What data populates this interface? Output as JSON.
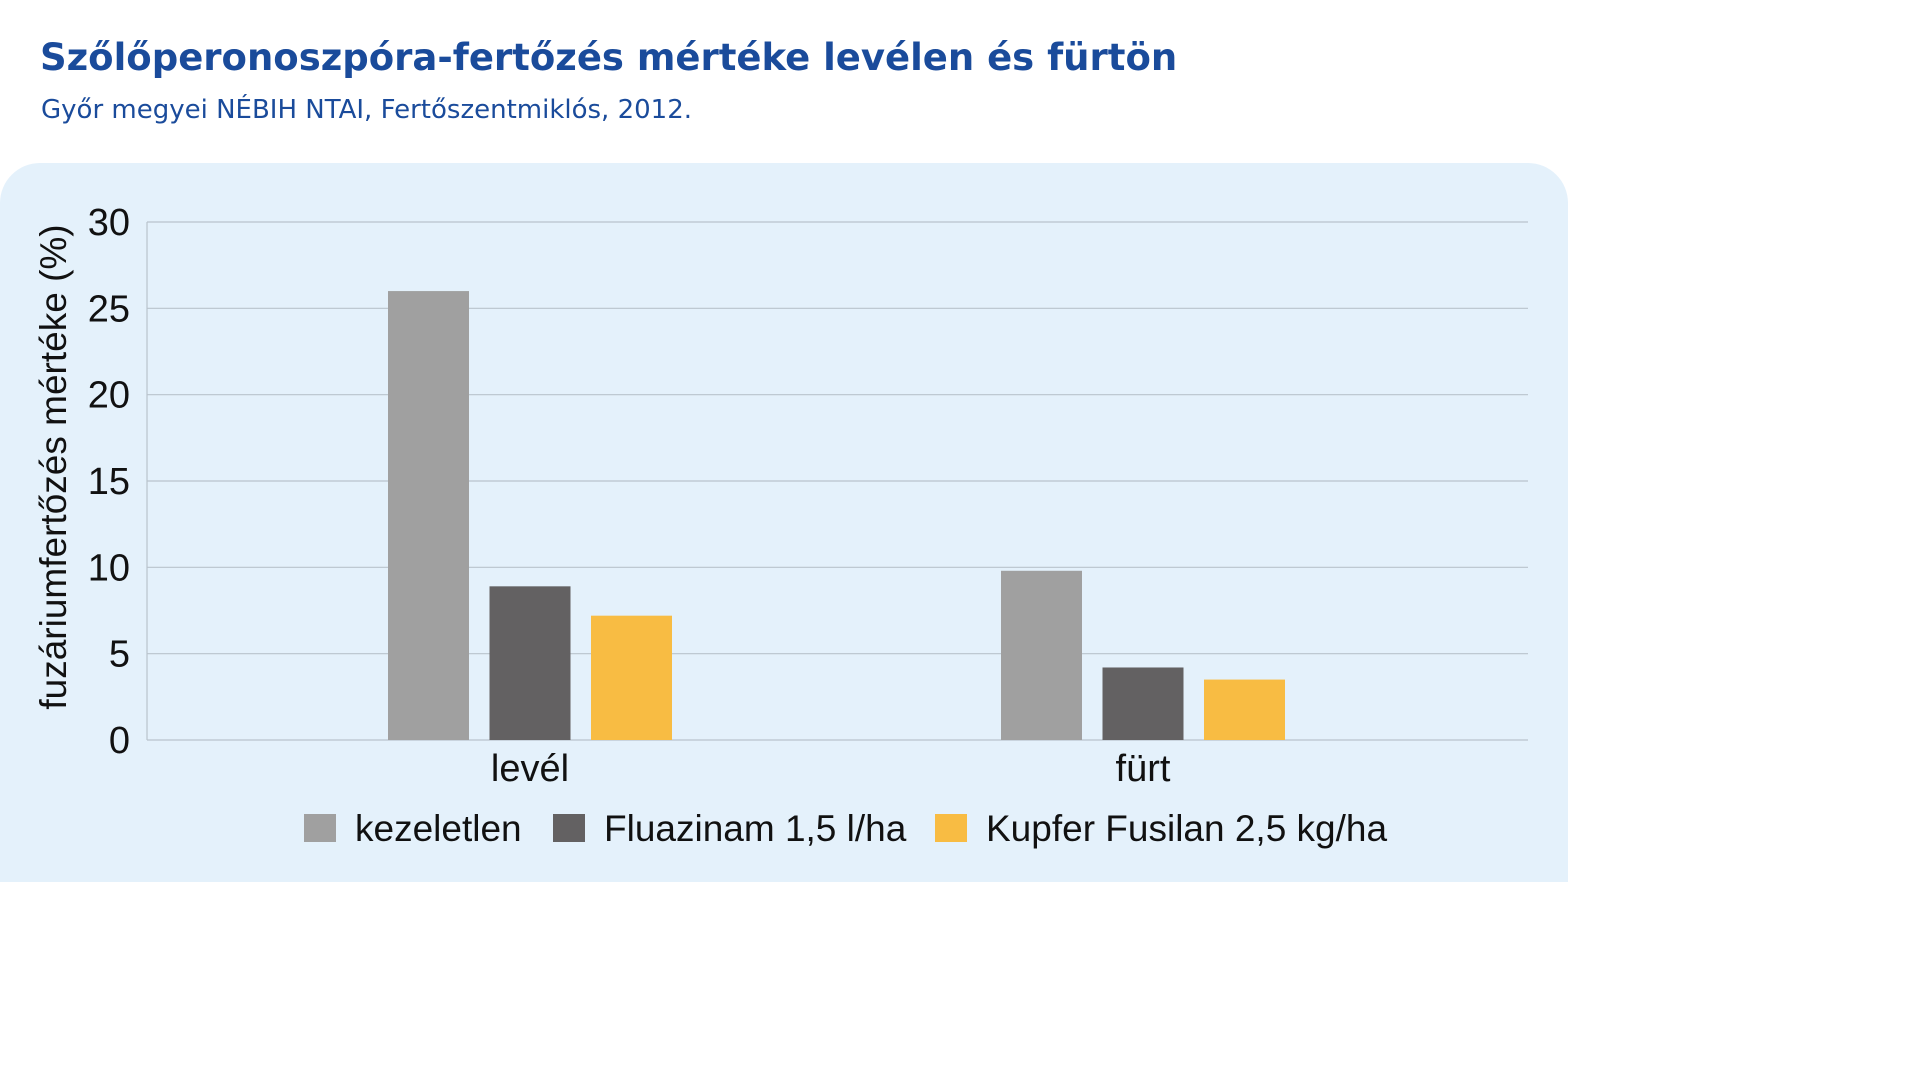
{
  "header": {
    "title": "Szőlőperonoszpóra-fertőzés mértéke levélen és fürtön",
    "subtitle": "Győr megyei NÉBIH NTAI, Fertőszentmiklós, 2012."
  },
  "colors": {
    "panel_background": "#e4f1fb",
    "title": "#1a4b9b",
    "gridline": "#b9c3cc"
  },
  "chart_data": {
    "type": "bar",
    "title": "",
    "xlabel": "",
    "ylabel": "fuzáriumfertőzés mértéke (%)",
    "ylim": [
      0,
      30
    ],
    "yticks": [
      0,
      5,
      10,
      15,
      20,
      25,
      30
    ],
    "grid": true,
    "legend_position": "bottom",
    "categories": [
      "levél",
      "fürt"
    ],
    "series": [
      {
        "name": "kezeletlen",
        "color": "#a0a0a0",
        "values": [
          26,
          9.8
        ]
      },
      {
        "name": "Fluazinam 1,5 l/ha",
        "color": "#636162",
        "values": [
          8.9,
          4.2
        ]
      },
      {
        "name": "Kupfer Fusilan 2,5 kg/ha",
        "color": "#f8bc43",
        "values": [
          7.2,
          3.5
        ]
      }
    ]
  }
}
